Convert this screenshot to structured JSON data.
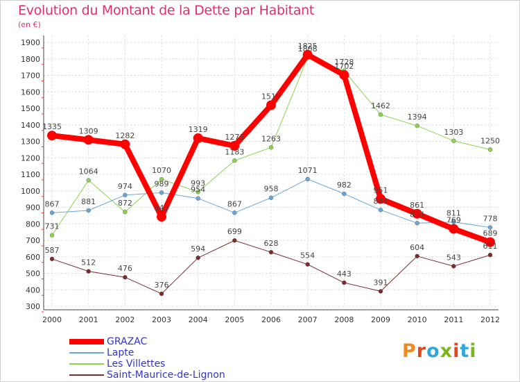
{
  "header": {
    "title": "Evolution du Montant de la Dette par Habitant",
    "subtitle": "(en €)"
  },
  "logo": {
    "text": "Proxiti",
    "letter_colors": [
      "#f08a1c",
      "#e8461e",
      "#2fa8d8",
      "#7ab51d",
      "#e8461e",
      "#2fa8d8",
      "#7ab51d"
    ]
  },
  "chart_data": {
    "type": "line",
    "x": [
      "2000",
      "2001",
      "2002",
      "2003",
      "2004",
      "2005",
      "2006",
      "2007",
      "2008",
      "2009",
      "2010",
      "2011",
      "2012"
    ],
    "ylim": [
      300,
      1900
    ],
    "yticks": [
      300,
      400,
      500,
      600,
      700,
      800,
      900,
      1000,
      1100,
      1200,
      1300,
      1400,
      1500,
      1600,
      1700,
      1800,
      1900
    ],
    "grid": true,
    "legend_position": "bottom-left",
    "series": [
      {
        "name": "Saint-Maurice-de-Lignon",
        "color": "#7b2b2b",
        "text_color": "#3333cc",
        "values": [
          587,
          512,
          476,
          376,
          594,
          699,
          628,
          554,
          443,
          391,
          604,
          543,
          611
        ]
      },
      {
        "name": "Les Villettes",
        "color": "#8fd14f",
        "text_color": "#3333cc",
        "values": [
          731,
          1064,
          872,
          1070,
          993,
          1183,
          1263,
          1808,
          1728,
          1462,
          1394,
          1303,
          1250
        ]
      },
      {
        "name": "Lapte",
        "color": "#6aa5d4",
        "text_color": "#3333cc",
        "values": [
          867,
          881,
          974,
          989,
          954,
          867,
          958,
          1071,
          982,
          884,
          804,
          811,
          778
        ]
      },
      {
        "name": "GRAZAC",
        "color": "#ff0000",
        "text_color": "#3333cc",
        "values": [
          1335,
          1309,
          1282,
          843,
          1319,
          1273,
          1519,
          1825,
          1702,
          951,
          861,
          769,
          689
        ]
      }
    ]
  }
}
